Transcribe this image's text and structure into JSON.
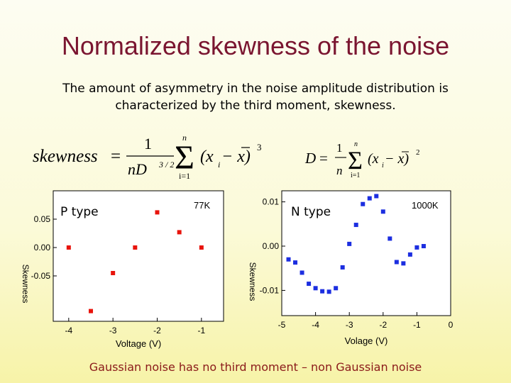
{
  "slide": {
    "title": "Normalized skewness of the noise",
    "subtitle": "The amount of asymmetry in the noise amplitude distribution is characterized by the third moment, skewness.",
    "footer": "Gaussian noise has no third moment – non Gaussian noise"
  },
  "formulas": {
    "skewness": {
      "lhs": "skewness",
      "numerator": "1",
      "denominator": "nD",
      "exp": "3 / 2",
      "sum_upper": "n",
      "sum_lower": "i=1",
      "term": "(x",
      "sub": "i",
      "minus": " − x)",
      "power": "3"
    },
    "variance": {
      "lhs": "D",
      "numerator": "1",
      "denominator": "n",
      "sum_upper": "n",
      "sum_lower": "i=1",
      "term": "(x",
      "sub": "i",
      "minus": " − x)",
      "power": "2"
    }
  },
  "chart_data": [
    {
      "type": "scatter",
      "label": "P type",
      "annotation": "77K",
      "xlabel": "Voltage (V)",
      "ylabel": "Skewness",
      "xlim": [
        -4.35,
        -0.5
      ],
      "ylim": [
        -0.13,
        0.1
      ],
      "xticks": [
        -4,
        -3,
        -2,
        -1
      ],
      "yticks": [
        0.05,
        0.0,
        -0.05
      ],
      "ytick_labels": [
        "0.05",
        "0.00",
        "-0.05"
      ],
      "color": "#e8140c",
      "x": [
        -4.0,
        -3.5,
        -3.0,
        -2.5,
        -2.0,
        -1.5,
        -1.0
      ],
      "y": [
        0.0,
        -0.112,
        -0.045,
        0.0,
        0.062,
        0.027,
        0.0
      ]
    },
    {
      "type": "scatter",
      "label": "N type",
      "annotation": "1000K",
      "xlabel": "Volage (V)",
      "ylabel": "Skewness",
      "xlim": [
        -5.0,
        0.0
      ],
      "ylim": [
        -0.0157,
        0.0125
      ],
      "xticks": [
        -5,
        -4,
        -3,
        -2,
        -1,
        0
      ],
      "yticks": [
        0.01,
        0.0,
        -0.01
      ],
      "ytick_labels": [
        "0.01",
        "0.00",
        "-0.01"
      ],
      "color": "#1c2ee0",
      "x": [
        -4.8,
        -4.6,
        -4.4,
        -4.2,
        -4.0,
        -3.8,
        -3.6,
        -3.4,
        -3.2,
        -3.0,
        -2.8,
        -2.6,
        -2.4,
        -2.2,
        -2.0,
        -1.8,
        -1.6,
        -1.4,
        -1.2,
        -1.0,
        -0.8
      ],
      "y": [
        -0.003,
        -0.0037,
        -0.006,
        -0.0085,
        -0.0095,
        -0.0102,
        -0.0103,
        -0.0095,
        -0.0048,
        0.0005,
        0.0048,
        0.0095,
        0.0108,
        0.0113,
        0.0078,
        0.0017,
        -0.0036,
        -0.0039,
        -0.0019,
        -0.0003,
        0.0
      ]
    }
  ]
}
